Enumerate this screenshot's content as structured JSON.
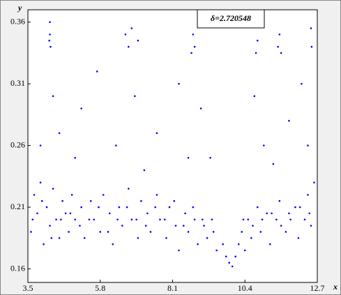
{
  "chart_data": {
    "type": "scatter",
    "title": "δ=2.720548",
    "x_label": "x",
    "y_label": "y",
    "xlim": [
      3.5,
      12.7
    ],
    "xticks": [
      3.5,
      5.8,
      8.1,
      10.4,
      12.7
    ],
    "ylim": [
      0.149,
      0.37
    ],
    "yticks": [
      0.16,
      0.21,
      0.26,
      0.31,
      0.36
    ],
    "series": [
      {
        "color": "#0000ff",
        "x": [
          3.6,
          3.7,
          3.8,
          3.9,
          4.0,
          4.1,
          4.2,
          4.3,
          4.4,
          4.5,
          4.6,
          4.7,
          4.8,
          4.9,
          5.0,
          5.2,
          5.3,
          5.5,
          5.6,
          5.8,
          5.9,
          6.1,
          6.2,
          6.4,
          6.5,
          6.7,
          6.8,
          7.0,
          7.1,
          7.3,
          7.4,
          7.6,
          7.7,
          7.9,
          8.0,
          8.2,
          8.3,
          8.5,
          8.6,
          8.8,
          8.9,
          9.1,
          9.2,
          9.4,
          9.5,
          9.7,
          9.8,
          9.9,
          10.0,
          10.1,
          10.2,
          10.3,
          10.4,
          10.5,
          10.6,
          10.8,
          10.9,
          11.1,
          11.2,
          11.4,
          11.5,
          11.7,
          11.8,
          12.0,
          12.1,
          12.3,
          12.4,
          12.5,
          12.6,
          3.65,
          3.95,
          4.25,
          4.55,
          4.85,
          5.15,
          5.45,
          5.75,
          6.05,
          6.35,
          6.65,
          6.95,
          7.25,
          7.55,
          7.85,
          8.15,
          8.45,
          8.75,
          9.05,
          9.35,
          10.35,
          10.65,
          10.95,
          11.25,
          11.55,
          11.85,
          12.15,
          12.45,
          4.2,
          4.2,
          4.18,
          4.22,
          6.6,
          6.8,
          7.0,
          6.7,
          8.75,
          8.8,
          8.7,
          10.8,
          10.75,
          11.5,
          11.45,
          11.55,
          12.5,
          12.52,
          4.3,
          4.5,
          5.2,
          5.7,
          6.3,
          6.9,
          7.6,
          8.3,
          9.0,
          9.3,
          10.7,
          11.0,
          11.8,
          12.2,
          5.0,
          7.2,
          8.6,
          11.3,
          3.9,
          12.4
        ],
        "y": [
          0.19,
          0.22,
          0.205,
          0.23,
          0.18,
          0.21,
          0.195,
          0.225,
          0.2,
          0.185,
          0.215,
          0.205,
          0.19,
          0.22,
          0.2,
          0.21,
          0.185,
          0.215,
          0.2,
          0.19,
          0.22,
          0.205,
          0.18,
          0.21,
          0.195,
          0.225,
          0.2,
          0.185,
          0.215,
          0.205,
          0.19,
          0.22,
          0.2,
          0.185,
          0.21,
          0.195,
          0.175,
          0.205,
          0.19,
          0.2,
          0.18,
          0.195,
          0.185,
          0.19,
          0.175,
          0.18,
          0.17,
          0.165,
          0.162,
          0.17,
          0.18,
          0.19,
          0.175,
          0.2,
          0.185,
          0.21,
          0.19,
          0.205,
          0.18,
          0.2,
          0.215,
          0.19,
          0.205,
          0.21,
          0.185,
          0.2,
          0.22,
          0.195,
          0.23,
          0.2,
          0.215,
          0.185,
          0.2,
          0.205,
          0.195,
          0.2,
          0.21,
          0.19,
          0.2,
          0.21,
          0.2,
          0.195,
          0.21,
          0.2,
          0.215,
          0.195,
          0.21,
          0.2,
          0.2,
          0.2,
          0.195,
          0.2,
          0.205,
          0.195,
          0.2,
          0.21,
          0.205,
          0.36,
          0.35,
          0.345,
          0.34,
          0.35,
          0.355,
          0.345,
          0.34,
          0.35,
          0.34,
          0.335,
          0.345,
          0.335,
          0.35,
          0.34,
          0.335,
          0.355,
          0.34,
          0.3,
          0.27,
          0.29,
          0.32,
          0.26,
          0.3,
          0.27,
          0.31,
          0.29,
          0.25,
          0.3,
          0.26,
          0.28,
          0.31,
          0.25,
          0.24,
          0.25,
          0.245,
          0.26,
          0.26
        ]
      }
    ]
  }
}
